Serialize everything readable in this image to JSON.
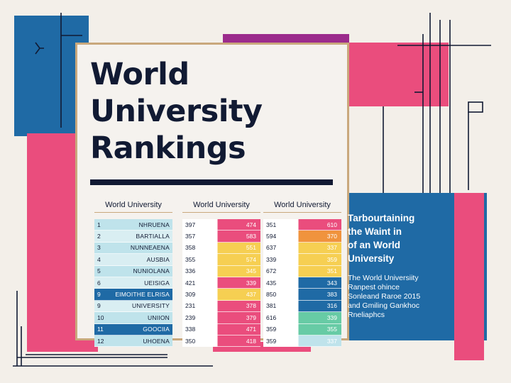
{
  "colors": {
    "background": "#f3efe9",
    "navy": "#111a33",
    "blue": "#1f6aa5",
    "pink": "#ea4d7d",
    "purple": "#9b2b8c",
    "yellow": "#f6cf52",
    "orange": "#f0933d",
    "teal": "#67cba5",
    "light_blue": "#bfe3eb",
    "gold_border": "#c9a87c"
  },
  "title_lines": [
    "World",
    "University",
    "Rankings"
  ],
  "columns": [
    "World University",
    "World University",
    "World University"
  ],
  "table_1": [
    {
      "rank": "1",
      "name": "NHRUENA",
      "fill": "#bfe3eb"
    },
    {
      "rank": "2",
      "name": "BARTIALLA",
      "fill": "#d9eef2"
    },
    {
      "rank": "3",
      "name": "NUNNEAENA",
      "fill": "#bfe3eb"
    },
    {
      "rank": "4",
      "name": "AUSBIA",
      "fill": "#d9eef2"
    },
    {
      "rank": "5",
      "name": "NUNIOLANA",
      "fill": "#bfe3eb"
    },
    {
      "rank": "6",
      "name": "UEISIGA",
      "fill": "#d9eef2"
    },
    {
      "rank": "9",
      "name": "EIMOITHE ELRISA",
      "fill": "#1f6aa5",
      "light": true
    },
    {
      "rank": "9",
      "name": "UNIVERSITY",
      "fill": "#d9eef2"
    },
    {
      "rank": "10",
      "name": "UNIION",
      "fill": "#bfe3eb"
    },
    {
      "rank": "11",
      "name": "GOOCIIA",
      "fill": "#1f6aa5",
      "light": true
    },
    {
      "rank": "12",
      "name": "UHOENA",
      "fill": "#bfe3eb"
    }
  ],
  "table_2": [
    {
      "v1": "397",
      "v2": "474",
      "fill": "#ea4d7d"
    },
    {
      "v1": "357",
      "v2": "583",
      "fill": "#ea4d7d"
    },
    {
      "v1": "358",
      "v2": "551",
      "fill": "#f6cf52"
    },
    {
      "v1": "355",
      "v2": "574",
      "fill": "#f6cf52"
    },
    {
      "v1": "336",
      "v2": "345",
      "fill": "#f6cf52"
    },
    {
      "v1": "421",
      "v2": "339",
      "fill": "#ea4d7d"
    },
    {
      "v1": "309",
      "v2": "437",
      "fill": "#f6cf52"
    },
    {
      "v1": "231",
      "v2": "378",
      "fill": "#ea4d7d"
    },
    {
      "v1": "239",
      "v2": "379",
      "fill": "#ea4d7d"
    },
    {
      "v1": "338",
      "v2": "471",
      "fill": "#ea4d7d"
    },
    {
      "v1": "350",
      "v2": "418",
      "fill": "#ea4d7d"
    }
  ],
  "table_3": [
    {
      "v1": "351",
      "v2": "610",
      "fill": "#ea4d7d"
    },
    {
      "v1": "594",
      "v2": "370",
      "fill": "#f0933d"
    },
    {
      "v1": "637",
      "v2": "337",
      "fill": "#f6cf52"
    },
    {
      "v1": "339",
      "v2": "359",
      "fill": "#f6cf52"
    },
    {
      "v1": "672",
      "v2": "351",
      "fill": "#f6cf52"
    },
    {
      "v1": "435",
      "v2": "343",
      "fill": "#1f6aa5"
    },
    {
      "v1": "850",
      "v2": "383",
      "fill": "#1f6aa5"
    },
    {
      "v1": "381",
      "v2": "316",
      "fill": "#1f6aa5"
    },
    {
      "v1": "616",
      "v2": "339",
      "fill": "#67cba5"
    },
    {
      "v1": "359",
      "v2": "355",
      "fill": "#67cba5"
    },
    {
      "v1": "359",
      "v2": "337",
      "fill": "#bfe3eb"
    }
  ],
  "info": {
    "heading_lines": [
      "Tarbourtaining",
      "the Waint in",
      "of an World",
      "University"
    ],
    "body_lines": [
      "The World Universiity",
      "Ranpest ohince",
      "Sonleand Raroe 2015",
      "and Gmiling Gankhoc",
      "Rneliaphcs"
    ]
  }
}
